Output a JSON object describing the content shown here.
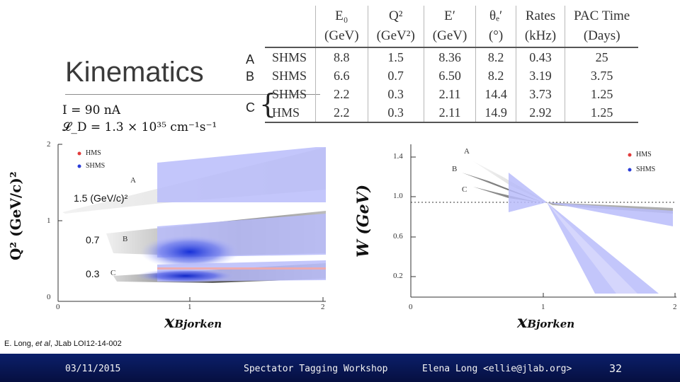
{
  "slide": {
    "title": "Kinematics",
    "beam_current": "I = 90 nA",
    "luminosity": "𝓛_D = 1.3 × 10³⁵ cm⁻¹s⁻¹",
    "row_letters": [
      "A",
      "B",
      "C"
    ]
  },
  "table": {
    "headers": [
      "E₀",
      "Q²",
      "E′",
      "θₑ′",
      "Rates",
      "PAC Time"
    ],
    "units": [
      "(GeV)",
      "(GeV²)",
      "(GeV)",
      "(°)",
      "(kHz)",
      "(Days)"
    ],
    "rows": [
      [
        "SHMS",
        "8.8",
        "1.5",
        "8.36",
        "8.2",
        "0.43",
        "25"
      ],
      [
        "SHMS",
        "6.6",
        "0.7",
        "6.50",
        "8.2",
        "3.19",
        "3.75"
      ],
      [
        "SHMS",
        "2.2",
        "0.3",
        "2.11",
        "14.4",
        "3.73",
        "1.25"
      ],
      [
        "HMS",
        "2.2",
        "0.3",
        "2.11",
        "14.9",
        "2.92",
        "1.25"
      ]
    ]
  },
  "left_plot": {
    "ylabel": "Q² (GeV/c)²",
    "xlabel": "x",
    "xlabel_sub": "Bjorken",
    "yticks": [
      "2",
      "1",
      "0"
    ],
    "xticks": [
      "0",
      "1",
      "2"
    ],
    "legend": [
      "HMS",
      "SHMS"
    ],
    "band_letters": [
      "A",
      "B",
      "C"
    ],
    "q2_annotations": [
      "1.5 (GeV/c)²",
      "0.7",
      "0.3"
    ]
  },
  "right_plot": {
    "ylabel": "W (GeV)",
    "xlabel": "x",
    "xlabel_sub": "Bjorken",
    "yticks": [
      "1.4",
      "1.0",
      "0.6",
      "0.2"
    ],
    "xticks": [
      "0",
      "1",
      "2"
    ],
    "legend": [
      "HMS",
      "SHMS"
    ],
    "band_letters": [
      "A",
      "B",
      "C"
    ]
  },
  "citation": {
    "prefix": "E. Long, ",
    "italic": "et al",
    "suffix": ", JLab LOI12-14-002"
  },
  "footer": {
    "date": "03/11/2015",
    "event": "Spectator Tagging Workshop",
    "author": "Elena Long <ellie@jlab.org>",
    "page": "32"
  },
  "colors": {
    "footer_bg": "#0b1f6a",
    "hms": "#e23b3b",
    "shms": "#2a3cd8",
    "band_light_blue": "#b9bcfa"
  }
}
